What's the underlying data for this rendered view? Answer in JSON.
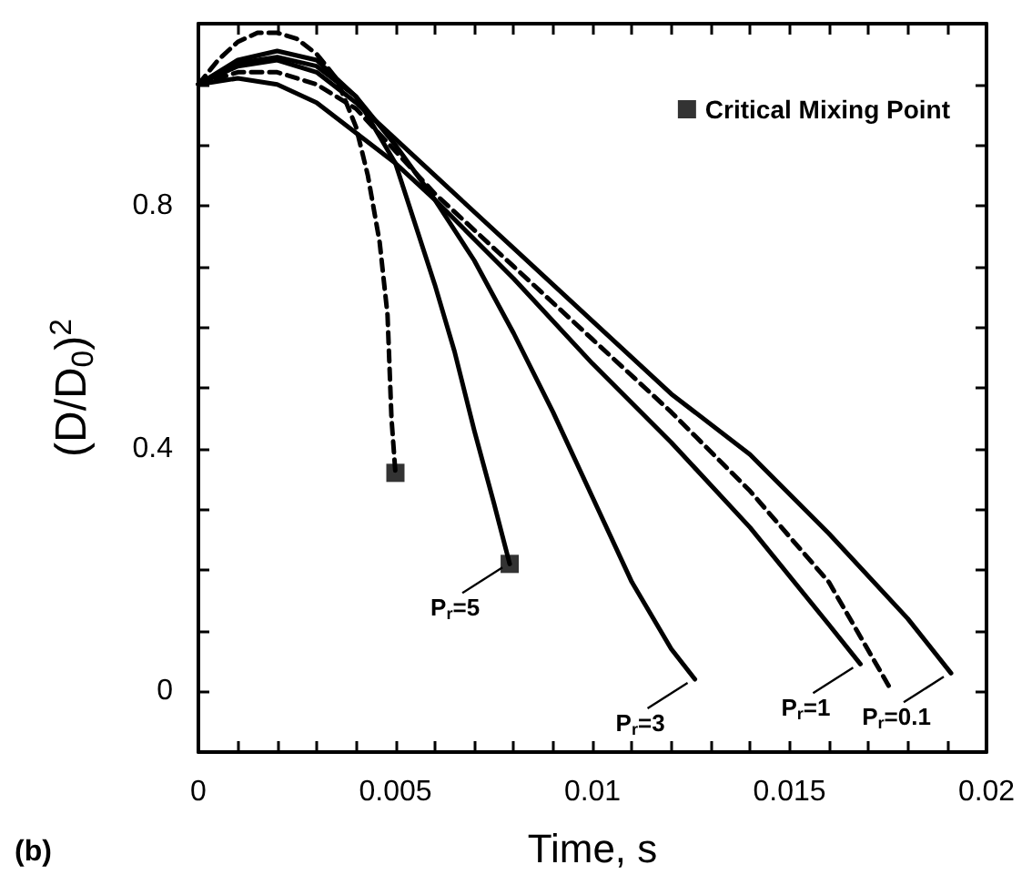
{
  "chart_data": {
    "type": "line",
    "xlabel": "Time, s",
    "ylabel": "(D/D$_{0}$)$^{2}$",
    "xlim": [
      0,
      0.02
    ],
    "ylim": [
      -0.1,
      1.1
    ],
    "xticks": [
      0,
      {
        "value": 0.001,
        "label": null
      },
      {
        "value": 0.002,
        "label": null
      },
      {
        "value": 0.003,
        "label": null
      },
      {
        "value": 0.004,
        "label": null
      },
      0.005,
      {
        "value": 0.006,
        "label": null
      },
      {
        "value": 0.007,
        "label": null
      },
      {
        "value": 0.008,
        "label": null
      },
      {
        "value": 0.009,
        "label": null
      },
      0.01,
      {
        "value": 0.011,
        "label": null
      },
      {
        "value": 0.012,
        "label": null
      },
      {
        "value": 0.013,
        "label": null
      },
      {
        "value": 0.014,
        "label": null
      },
      0.015,
      {
        "value": 0.016,
        "label": null
      },
      {
        "value": 0.017,
        "label": null
      },
      {
        "value": 0.018,
        "label": null
      },
      {
        "value": 0.019,
        "label": null
      },
      0.02
    ],
    "yticks": [
      {
        "value": -0.1,
        "label": null
      },
      0,
      {
        "value": 0.1,
        "label": null
      },
      {
        "value": 0.2,
        "label": null
      },
      {
        "value": 0.3,
        "label": null
      },
      0.4,
      {
        "value": 0.5,
        "label": null
      },
      {
        "value": 0.6,
        "label": null
      },
      {
        "value": 0.7,
        "label": null
      },
      0.8,
      {
        "value": 0.9,
        "label": null
      },
      {
        "value": 1.0,
        "label": null
      },
      {
        "value": 1.1,
        "label": null
      }
    ],
    "grid": false,
    "legend": "top right",
    "series": [
      {
        "color": "#000000",
        "line_style": "dashed",
        "marker": "none",
        "x": [
          0,
          0.0005,
          0.001,
          0.0015,
          0.002,
          0.0025,
          0.003,
          0.0035,
          0.004,
          0.0043,
          0.0046,
          0.0048,
          0.0049,
          0.005
        ],
        "values": [
          1,
          1.04,
          1.07,
          1.085,
          1.085,
          1.075,
          1.05,
          1.01,
          0.93,
          0.85,
          0.74,
          0.62,
          0.45,
          0.36
        ]
      },
      {
        "color": "#000000",
        "line_style": "solid",
        "marker": "none",
        "x": [
          0,
          0.001,
          0.002,
          0.003,
          0.004,
          0.005,
          0.006,
          0.0065,
          0.007,
          0.0075,
          0.0079
        ],
        "values": [
          1,
          1.04,
          1.055,
          1.04,
          0.98,
          0.87,
          0.67,
          0.56,
          0.43,
          0.31,
          0.21
        ]
      },
      {
        "color": "#000000",
        "line_style": "solid",
        "marker": "none",
        "x": [
          0,
          0.001,
          0.002,
          0.003,
          0.004,
          0.005,
          0.006,
          0.007,
          0.008,
          0.009,
          0.01,
          0.011,
          0.012,
          0.0126
        ],
        "values": [
          1,
          1.035,
          1.045,
          1.03,
          0.98,
          0.9,
          0.81,
          0.71,
          0.59,
          0.46,
          0.32,
          0.18,
          0.07,
          0.02
        ]
      },
      {
        "color": "#000000",
        "line_style": "solid",
        "marker": "none",
        "x": [
          0,
          0.001,
          0.002,
          0.003,
          0.004,
          0.005,
          0.006,
          0.008,
          0.01,
          0.012,
          0.014,
          0.016,
          0.0168
        ],
        "values": [
          1,
          1.01,
          1.0,
          0.97,
          0.92,
          0.87,
          0.81,
          0.68,
          0.54,
          0.41,
          0.27,
          0.11,
          0.045
        ]
      },
      {
        "color": "#000000",
        "line_style": "dashed",
        "marker": "none",
        "x": [
          0,
          0.001,
          0.002,
          0.003,
          0.004,
          0.005,
          0.006,
          0.008,
          0.01,
          0.012,
          0.014,
          0.016,
          0.0176
        ],
        "values": [
          1,
          1.02,
          1.02,
          1.0,
          0.96,
          0.89,
          0.82,
          0.7,
          0.58,
          0.46,
          0.33,
          0.18,
          0.0
        ]
      },
      {
        "color": "#000000",
        "line_style": "solid",
        "marker": "none",
        "x": [
          0,
          0.001,
          0.002,
          0.003,
          0.004,
          0.005,
          0.006,
          0.008,
          0.01,
          0.012,
          0.014,
          0.016,
          0.018,
          0.0191
        ],
        "values": [
          1,
          1.03,
          1.04,
          1.02,
          0.97,
          0.91,
          0.85,
          0.73,
          0.61,
          0.49,
          0.39,
          0.26,
          0.12,
          0.03
        ]
      },
      {
        "type": "scatter",
        "name": "Critical Mixing Point",
        "color": "#000000",
        "marker": "square",
        "x": [
          0.005,
          0.0079
        ],
        "values": [
          0.36,
          0.21
        ]
      }
    ],
    "annotations": [
      {
        "text": "P$_{r}$=5",
        "x": 0.0079,
        "y": 0.21
      },
      {
        "text": "P$_{r}$=3",
        "x": 0.0126,
        "y": 0.02
      },
      {
        "text": "P$_{r}$=1",
        "x": 0.0168,
        "y": 0.045
      },
      {
        "text": "P$_{r}$=0.1",
        "x": 0.0191,
        "y": 0.03
      },
      "(b)"
    ]
  }
}
